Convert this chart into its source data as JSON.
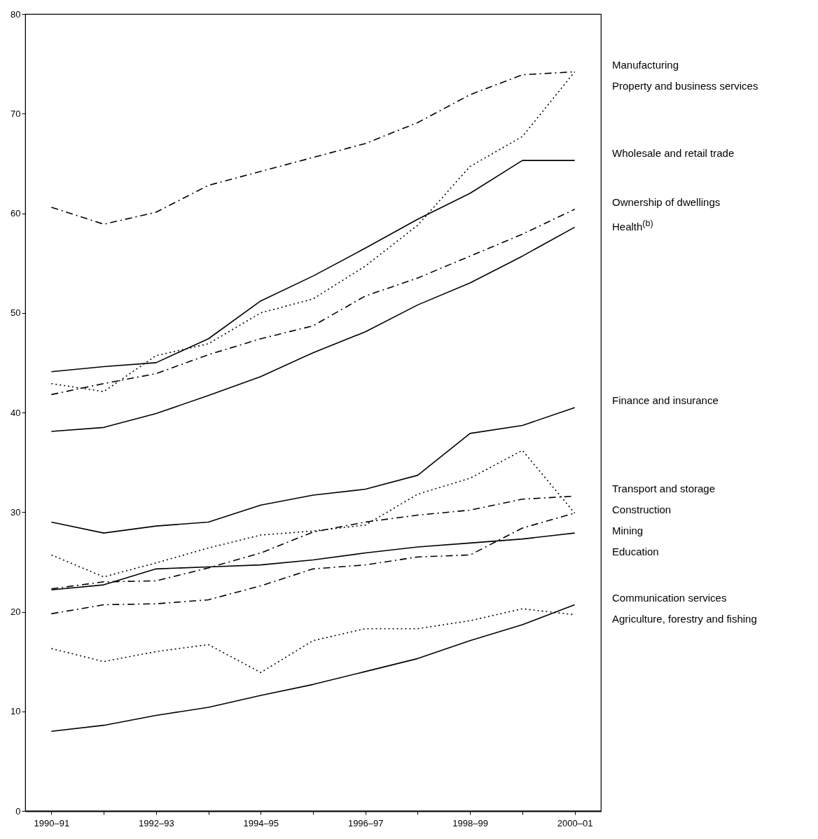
{
  "chart_data": {
    "type": "line",
    "categories": [
      "1990–91",
      null,
      "1992–93",
      null,
      "1994–95",
      null,
      "1996–97",
      null,
      "1998–99",
      null,
      "2000–01"
    ],
    "ylim": [
      0,
      80
    ],
    "yticks": [
      0,
      10,
      20,
      30,
      40,
      50,
      60,
      70,
      80
    ],
    "grid": false,
    "legend": false,
    "marker": "none",
    "series": [
      {
        "name": "Manufacturing",
        "color": "#000000",
        "line_style": "dashed",
        "values": [
          60.6,
          58.9,
          60.1,
          62.8,
          64.2,
          65.6,
          67.0,
          69.1,
          71.9,
          73.9,
          74.2
        ]
      },
      {
        "name": "Property and business services",
        "color": "#000000",
        "line_style": "dotted",
        "values": [
          42.9,
          42.1,
          45.7,
          46.9,
          50.0,
          51.4,
          54.7,
          58.8,
          64.7,
          67.7,
          74.2
        ]
      },
      {
        "name": "Wholesale and retail trade",
        "color": "#000000",
        "line_style": "solid",
        "values": [
          44.1,
          44.6,
          45.0,
          47.4,
          51.2,
          53.7,
          56.5,
          59.4,
          62.0,
          65.3,
          65.3
        ]
      },
      {
        "name": "Ownership of dwellings",
        "color": "#000000",
        "line_style": "dashed",
        "values": [
          41.8,
          42.9,
          43.9,
          45.8,
          47.4,
          48.7,
          51.7,
          53.5,
          55.7,
          57.9,
          60.4
        ]
      },
      {
        "name": "Health$^{(b)}$",
        "color": "#000000",
        "line_style": "solid",
        "values": [
          38.1,
          38.5,
          39.9,
          41.7,
          43.6,
          46.0,
          48.1,
          50.8,
          53.0,
          55.7,
          58.6
        ]
      },
      {
        "name": "Finance and insurance",
        "color": "#000000",
        "line_style": "solid",
        "values": [
          29.0,
          27.9,
          28.6,
          29.0,
          30.7,
          31.7,
          32.3,
          33.7,
          37.9,
          38.7,
          40.5
        ]
      },
      {
        "name": "Construction",
        "color": "#000000",
        "line_style": "dotted",
        "values": [
          25.7,
          23.5,
          24.9,
          26.4,
          27.7,
          28.1,
          28.7,
          31.8,
          33.4,
          36.2,
          29.9
        ]
      },
      {
        "name": "Transport and storage",
        "color": "#000000",
        "line_style": "dashed",
        "values": [
          22.3,
          23.0,
          23.1,
          24.4,
          25.9,
          28.0,
          29.0,
          29.7,
          30.2,
          31.3,
          31.6
        ]
      },
      {
        "name": "Mining",
        "color": "#000000",
        "line_style": "dashed",
        "values": [
          19.8,
          20.7,
          20.8,
          21.2,
          22.6,
          24.3,
          24.7,
          25.5,
          25.7,
          28.4,
          29.9
        ]
      },
      {
        "name": "Education",
        "color": "#000000",
        "line_style": "solid",
        "values": [
          22.2,
          22.7,
          24.3,
          24.5,
          24.7,
          25.2,
          25.9,
          26.5,
          26.9,
          27.3,
          27.9
        ]
      },
      {
        "name": "Communication services",
        "color": "#000000",
        "line_style": "solid",
        "values": [
          8.0,
          8.6,
          9.6,
          10.4,
          11.6,
          12.7,
          14.0,
          15.3,
          17.1,
          18.7,
          20.7
        ]
      },
      {
        "name": "Agriculture, forestry and fishing",
        "color": "#000000",
        "line_style": "dotted",
        "values": [
          16.3,
          15.0,
          16.0,
          16.7,
          13.9,
          17.1,
          18.3,
          18.3,
          19.1,
          20.3,
          19.7
        ]
      }
    ]
  }
}
